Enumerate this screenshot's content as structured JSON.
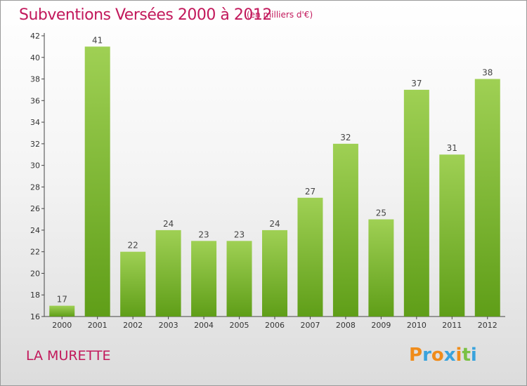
{
  "header": {
    "title": "Subventions Versées 2000 à 2012",
    "subtitle": "(en milliers d'€)"
  },
  "footer": {
    "location": "LA MURETTE",
    "logo_text": "Proxiti"
  },
  "colors": {
    "title": "#c2185b",
    "bar_top": "#9fd054",
    "bar_bottom": "#5f9e18",
    "axis": "#444444",
    "logo_letters": [
      "#f08c1a",
      "#3aa3dc",
      "#f08c1a",
      "#3aa3dc",
      "#f08c1a",
      "#7ac143",
      "#3aa3dc"
    ]
  },
  "chart_data": {
    "type": "bar",
    "categories": [
      "2000",
      "2001",
      "2002",
      "2003",
      "2004",
      "2005",
      "2006",
      "2007",
      "2008",
      "2009",
      "2010",
      "2011",
      "2012"
    ],
    "values": [
      17,
      41,
      22,
      24,
      23,
      23,
      24,
      27,
      32,
      25,
      37,
      31,
      38
    ],
    "ylim": [
      16,
      42
    ],
    "yticks": [
      16,
      18,
      20,
      22,
      24,
      26,
      28,
      30,
      32,
      34,
      36,
      38,
      40,
      42
    ],
    "grid": false,
    "data_labels": true
  }
}
